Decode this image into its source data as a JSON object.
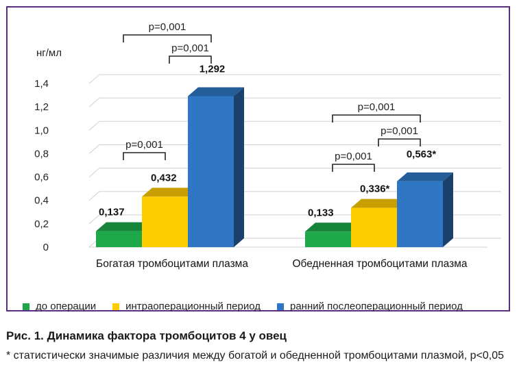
{
  "figure": {
    "caption_title": "Рис. 1. Динамика фактора тромбоцитов 4 у овец",
    "caption_note": "* статистически значимые различия между богатой и обедненной тромбоцитами плазмой, p<0,05"
  },
  "legend": [
    {
      "label": "до операции",
      "color": "#1fa84a"
    },
    {
      "label": "интраоперационный период",
      "color": "#ffcc00"
    },
    {
      "label": "ранний послеоперационный период",
      "color": "#2f77c5"
    }
  ],
  "chart_data": {
    "type": "bar",
    "ylabel": "нг/мл",
    "ylim": [
      0,
      1.4
    ],
    "yticks": [
      "0",
      "0,2",
      "0,4",
      "0,6",
      "0,8",
      "1,0",
      "1,2",
      "1,4"
    ],
    "categories": [
      "Богатая тромбоцитами плазма",
      "Обедненная тромбоцитами плазма"
    ],
    "series": [
      {
        "name": "до операции",
        "values": [
          0.137,
          0.133
        ],
        "labels": [
          "0,137",
          "0,133"
        ],
        "color": "#1fa84a"
      },
      {
        "name": "интраоперационный период",
        "values": [
          0.432,
          0.336
        ],
        "labels": [
          "0,432",
          "0,336*"
        ],
        "color": "#ffcc00"
      },
      {
        "name": "ранний послеоперационный период",
        "values": [
          1.292,
          0.563
        ],
        "labels": [
          "1,292",
          "0,563*"
        ],
        "color": "#2f77c5"
      }
    ],
    "annotations": [
      {
        "group": 0,
        "from": 0,
        "to": 1,
        "text": "p=0,001"
      },
      {
        "group": 0,
        "from": 1,
        "to": 2,
        "text": "p=0,001"
      },
      {
        "group": 0,
        "from": 0,
        "to": 2,
        "text": "p=0,001"
      },
      {
        "group": 1,
        "from": 0,
        "to": 1,
        "text": "p=0,001"
      },
      {
        "group": 1,
        "from": 1,
        "to": 2,
        "text": "p=0,001"
      },
      {
        "group": 1,
        "from": 0,
        "to": 2,
        "text": "p=0,001"
      }
    ]
  }
}
